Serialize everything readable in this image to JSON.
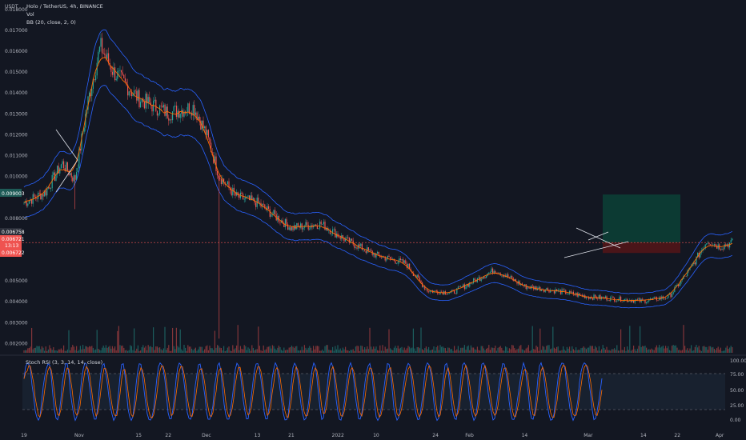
{
  "header": {
    "quote_currency": "USDT",
    "symbol_line": "Holo / TetherUS, 4h, BINANCE",
    "volume_label": "Vol",
    "bb_label": "BB (20, close, 2, 0)"
  },
  "rsi_panel": {
    "label": "Stoch RSI (3, 3, 14, 14, close)",
    "ticks": [
      "100.00",
      "75.00",
      "50.00",
      "25.00",
      "0.00"
    ]
  },
  "price_badges": {
    "bb_basis": "0.009003",
    "last": "0.006758",
    "upper": "0.006721",
    "line3": "13:13",
    "lower": "0.006722"
  },
  "colors": {
    "background": "#131722",
    "candle_up": "#26a69a",
    "candle_down": "#ef5350",
    "bb_band": "#2962ff",
    "bb_basis": "#ff6d00",
    "rsi_k": "#2962ff",
    "rsi_d": "#ff6d00",
    "target_zone": "#0c3a33",
    "stop_zone": "#4a1519"
  },
  "chart_data": {
    "type": "candlestick",
    "symbol": "Holo / TetherUS",
    "interval": "4h",
    "exchange": "BINANCE",
    "y_ticks": [
      "0.018000",
      "0.017000",
      "0.016000",
      "0.015000",
      "0.014000",
      "0.013000",
      "0.012000",
      "0.011000",
      "0.010000",
      "0.008000",
      "0.005000",
      "0.004000",
      "0.003000",
      "0.002000"
    ],
    "x_ticks": [
      "19",
      "Nov",
      "15",
      "22",
      "Dec",
      "13",
      "21",
      "2022",
      "10",
      "24",
      "Feb",
      "14",
      "Mar",
      "14",
      "22",
      "Apr",
      "11",
      "19",
      "May",
      "9"
    ],
    "price_path": [
      [
        "Oct 19",
        0.0087
      ],
      [
        "Oct 24",
        0.0092
      ],
      [
        "Oct 28",
        0.0106
      ],
      [
        "Oct 31",
        0.0098
      ],
      [
        "Nov 3",
        0.0135
      ],
      [
        "Nov 6",
        0.0162
      ],
      [
        "Nov 9",
        0.015
      ],
      [
        "Nov 15",
        0.0137
      ],
      [
        "Nov 22",
        0.013
      ],
      [
        "Nov 28",
        0.0133
      ],
      [
        "Dec 1",
        0.012
      ],
      [
        "Dec 4",
        0.01
      ],
      [
        "Dec 8",
        0.009
      ],
      [
        "Dec 13",
        0.0087
      ],
      [
        "Dec 21",
        0.0075
      ],
      [
        "Dec 28",
        0.0077
      ],
      [
        "Jan 3",
        0.0069
      ],
      [
        "Jan 10",
        0.0062
      ],
      [
        "Jan 17",
        0.0058
      ],
      [
        "Jan 22",
        0.0045
      ],
      [
        "Jan 28",
        0.0044
      ],
      [
        "Feb 7",
        0.0055
      ],
      [
        "Feb 14",
        0.0047
      ],
      [
        "Feb 21",
        0.0045
      ],
      [
        "Mar 1",
        0.0042
      ],
      [
        "Mar 14",
        0.004
      ],
      [
        "Mar 20",
        0.0042
      ],
      [
        "Mar 25",
        0.0055
      ],
      [
        "Mar 29",
        0.0069
      ],
      [
        "Apr 1",
        0.0066
      ],
      [
        "Apr 4",
        0.0068
      ]
    ],
    "wick_lows": [
      [
        "Dec 4",
        0.0022
      ],
      [
        "Oct 31",
        0.0084
      ]
    ],
    "trade_setup": {
      "entry": 0.0068,
      "target": 0.0091,
      "stop": 0.0063
    },
    "grid": false
  }
}
